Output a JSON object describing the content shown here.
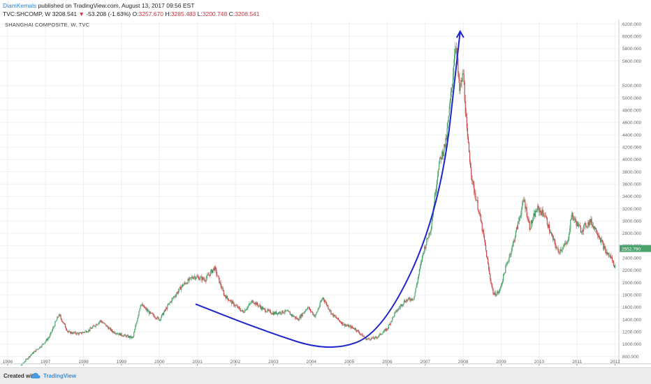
{
  "header": {
    "author": "DiamKemals",
    "published": "published on TradingView.com, August 13, 2017 09:56 EST",
    "symbol": "TVC:SHCOMP, W",
    "last": "3208.541",
    "change_arrow": "▼",
    "change": "-53.208 (-1.63%)",
    "o_label": "O:",
    "o_value": "3257.670",
    "h_label": "H:",
    "h_value": "3285.483",
    "l_label": "L:",
    "l_value": "3200.748",
    "c_label": "C:",
    "c_value": "3208.541"
  },
  "footer": {
    "created_with": "Created with",
    "brand": "TradingView"
  },
  "colors": {
    "up": "#4aa36a",
    "down": "#c94a4a",
    "curve": "#1f25c9",
    "grid": "#eef1f4",
    "axis_text": "#666666",
    "price_badge": "#4aa36a"
  },
  "chart_data": {
    "type": "candlestick",
    "title": "SHANGHAI COMPOSITE, W, TVC",
    "x_ticks": [
      "1996",
      "1997",
      "1998",
      "1999",
      "2000",
      "2001",
      "2002",
      "2003",
      "2004",
      "2005",
      "2006",
      "2007",
      "2008",
      "2009",
      "2010",
      "2011",
      "2012"
    ],
    "y_ticks": [
      "800.000",
      "1000.000",
      "1200.000",
      "1400.000",
      "1600.000",
      "1800.000",
      "2000.000",
      "2200.000",
      "2400.000",
      "2600.000",
      "2800.000",
      "3000.000",
      "3200.000",
      "3400.000",
      "3600.000",
      "3800.000",
      "4000.000",
      "4200.000",
      "4400.000",
      "4600.000",
      "4800.000",
      "5000.000",
      "5200.000",
      "5600.000",
      "5800.000",
      "6000.000",
      "6200.000"
    ],
    "ylim": [
      680,
      6250
    ],
    "xlim": [
      1995.8,
      2012.1
    ],
    "grid": true,
    "current_price_label": "2552.790",
    "current_price": 2552.79,
    "price_path": [
      [
        1996.0,
        560
      ],
      [
        1996.3,
        620
      ],
      [
        1996.6,
        820
      ],
      [
        1996.9,
        980
      ],
      [
        1997.1,
        1120
      ],
      [
        1997.35,
        1480
      ],
      [
        1997.6,
        1190
      ],
      [
        1997.9,
        1170
      ],
      [
        1998.15,
        1230
      ],
      [
        1998.45,
        1380
      ],
      [
        1998.75,
        1210
      ],
      [
        1999.0,
        1150
      ],
      [
        1999.3,
        1100
      ],
      [
        1999.5,
        1650
      ],
      [
        1999.75,
        1500
      ],
      [
        2000.0,
        1400
      ],
      [
        2000.3,
        1700
      ],
      [
        2000.6,
        1950
      ],
      [
        2000.9,
        2100
      ],
      [
        2001.2,
        2050
      ],
      [
        2001.45,
        2240
      ],
      [
        2001.7,
        1800
      ],
      [
        2001.95,
        1650
      ],
      [
        2002.2,
        1520
      ],
      [
        2002.45,
        1700
      ],
      [
        2002.75,
        1560
      ],
      [
        2003.0,
        1500
      ],
      [
        2003.35,
        1530
      ],
      [
        2003.65,
        1400
      ],
      [
        2003.9,
        1600
      ],
      [
        2004.1,
        1450
      ],
      [
        2004.3,
        1760
      ],
      [
        2004.55,
        1480
      ],
      [
        2004.85,
        1320
      ],
      [
        2005.15,
        1250
      ],
      [
        2005.45,
        1080
      ],
      [
        2005.7,
        1100
      ],
      [
        2006.0,
        1250
      ],
      [
        2006.2,
        1500
      ],
      [
        2006.45,
        1700
      ],
      [
        2006.7,
        1750
      ],
      [
        2006.95,
        2500
      ],
      [
        2007.15,
        2900
      ],
      [
        2007.35,
        3900
      ],
      [
        2007.55,
        4300
      ],
      [
        2007.7,
        5200
      ],
      [
        2007.8,
        5950
      ],
      [
        2007.9,
        5100
      ],
      [
        2008.0,
        5400
      ],
      [
        2008.1,
        4400
      ],
      [
        2008.25,
        3600
      ],
      [
        2008.4,
        3200
      ],
      [
        2008.55,
        2700
      ],
      [
        2008.7,
        2100
      ],
      [
        2008.8,
        1800
      ],
      [
        2008.95,
        1850
      ],
      [
        2009.1,
        2200
      ],
      [
        2009.3,
        2600
      ],
      [
        2009.5,
        3100
      ],
      [
        2009.6,
        3350
      ],
      [
        2009.75,
        2900
      ],
      [
        2009.95,
        3200
      ],
      [
        2010.15,
        3100
      ],
      [
        2010.3,
        2800
      ],
      [
        2010.5,
        2500
      ],
      [
        2010.75,
        2650
      ],
      [
        2010.85,
        3100
      ],
      [
        2011.1,
        2850
      ],
      [
        2011.35,
        3000
      ],
      [
        2011.55,
        2800
      ],
      [
        2011.75,
        2500
      ],
      [
        2011.9,
        2400
      ],
      [
        2012.0,
        2250
      ]
    ],
    "annotation_curve": [
      [
        2000.95,
        1650
      ],
      [
        2002.6,
        1250
      ],
      [
        2004.5,
        860
      ],
      [
        2005.9,
        1200
      ],
      [
        2007.4,
        3200
      ],
      [
        2007.92,
        6080
      ]
    ]
  }
}
